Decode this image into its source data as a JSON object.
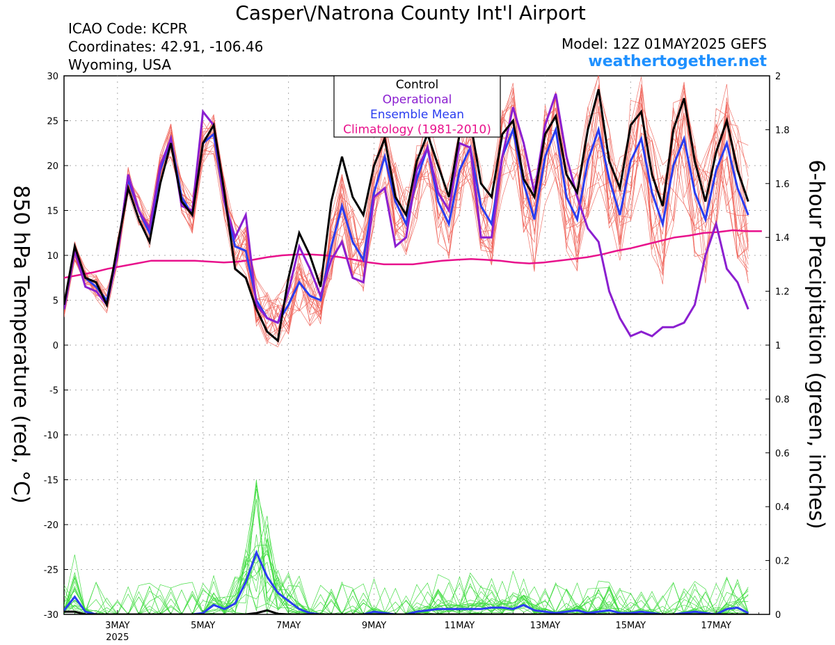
{
  "header": {
    "title": "Casper\\/Natrona County Int'l Airport",
    "icao": "ICAO Code: KCPR",
    "coords": "Coordinates: 42.91, -106.46",
    "region": "Wyoming, USA",
    "model": "Model: 12Z 01MAY2025 GEFS",
    "site": "weathertogether.net"
  },
  "chart_data": {
    "type": "line",
    "left_axis_label": "850 hPa Temperature (red, °C)",
    "right_axis_label": "6-hour Precipitation (green, inches)",
    "ylim": [
      -30,
      30
    ],
    "y2lim": [
      0,
      2
    ],
    "yticks": [
      30,
      25,
      20,
      15,
      10,
      5,
      0,
      -5,
      -10,
      -15,
      -20,
      -25,
      -30
    ],
    "y2ticks": [
      2,
      1.8,
      1.6,
      1.4,
      1.2,
      1,
      0.8,
      0.6,
      0.4,
      0.2,
      0
    ],
    "x_unit": "days since 01MAY2025 12Z (6-hour steps)",
    "xlim": [
      0.25,
      16.75
    ],
    "xticks": [
      {
        "x": 1.5,
        "label": "3MAY",
        "sub": "2025"
      },
      {
        "x": 3.5,
        "label": "5MAY"
      },
      {
        "x": 5.5,
        "label": "7MAY"
      },
      {
        "x": 7.5,
        "label": "9MAY"
      },
      {
        "x": 9.5,
        "label": "11MAY"
      },
      {
        "x": 11.5,
        "label": "13MAY"
      },
      {
        "x": 13.5,
        "label": "15MAY"
      },
      {
        "x": 15.5,
        "label": "17MAY"
      }
    ],
    "grid": true,
    "legend": {
      "position": "top-center",
      "entries": [
        {
          "label": "Control",
          "color": "#000000"
        },
        {
          "label": "Operational",
          "color": "#8b1fd0"
        },
        {
          "label": "Ensemble Mean",
          "color": "#2a3df0"
        },
        {
          "label": "Climatology (1981-2010)",
          "color": "#e8128c"
        }
      ]
    },
    "temp_control": [
      4.5,
      11,
      7.5,
      7,
      4.5,
      11,
      17.5,
      14,
      11.5,
      18,
      22.5,
      16,
      14.5,
      22.5,
      24.5,
      17,
      8.5,
      7.5,
      4,
      1.5,
      0.5,
      7.5,
      12.5,
      10,
      6.5,
      16,
      21,
      16.5,
      14.5,
      20,
      23,
      16.5,
      14.5,
      20.5,
      23.5,
      20,
      16.5,
      23.5,
      25,
      18,
      16.5,
      23.5,
      25,
      18.5,
      16.5,
      23.5,
      25.5,
      19,
      17,
      24,
      28.5,
      20.5,
      17.5,
      24.5,
      26,
      19,
      15.5,
      24,
      27.5,
      20.5,
      16,
      21.5,
      25,
      19.5,
      16
    ],
    "temp_operational": [
      4,
      10.5,
      6.5,
      6,
      4.5,
      10,
      19,
      15,
      13,
      20,
      23,
      15.5,
      15,
      26,
      24.5,
      16,
      12,
      14.5,
      4.5,
      3,
      2.5,
      6,
      11,
      8.5,
      5.5,
      9.5,
      11.5,
      7.5,
      7,
      16.5,
      17.5,
      11,
      12,
      19.5,
      22,
      17,
      15,
      22.5,
      22,
      12,
      12,
      21,
      26.5,
      22.5,
      17,
      24.5,
      28,
      21,
      16.5,
      13,
      11.5,
      6,
      3,
      1,
      1.5,
      1,
      2,
      2,
      2.5,
      4.5,
      10,
      13.5,
      8.5,
      7,
      4
    ],
    "temp_mean": [
      4,
      10.5,
      7.5,
      6.5,
      5,
      10.5,
      18.5,
      15,
      12.5,
      19.5,
      23,
      16.5,
      14.5,
      22.5,
      23.5,
      16,
      11,
      10.5,
      5,
      3,
      2.5,
      4.5,
      7,
      5.5,
      5,
      11,
      15.5,
      11.5,
      9.5,
      17,
      21,
      16,
      13.5,
      18.5,
      22,
      16,
      13.5,
      19.5,
      22,
      15.5,
      13.5,
      21,
      24,
      18,
      14,
      21,
      24,
      16.5,
      14,
      20.5,
      24,
      18.5,
      14.5,
      20.5,
      23,
      17,
      13.5,
      20,
      23,
      17,
      14,
      19.5,
      22.5,
      17.5,
      14.5
    ],
    "temp_climatology": [
      7.5,
      7.8,
      8.1,
      8.5,
      8.8,
      9.1,
      9.4,
      9.4,
      9.4,
      9.4,
      9.3,
      9.2,
      9.3,
      9.5,
      9.8,
      10,
      10.1,
      10.1,
      10,
      9.8,
      9.5,
      9.2,
      9,
      9,
      9,
      9.2,
      9.4,
      9.5,
      9.6,
      9.5,
      9.4,
      9.2,
      9.1,
      9.2,
      9.4,
      9.6,
      9.8,
      10.1,
      10.5,
      10.8,
      11.2,
      11.6,
      12,
      12.2,
      12.5,
      12.6,
      12.8,
      12.7,
      12.7
    ],
    "precip_control": [
      0.01,
      0.01,
      0,
      0,
      0,
      0,
      0,
      0,
      0,
      0,
      0,
      0,
      0,
      0,
      0,
      0,
      0,
      0,
      0.005,
      0.015,
      0.002,
      0,
      0,
      0,
      0,
      0,
      0,
      0,
      0,
      0,
      0,
      0,
      0,
      0,
      0,
      0,
      0,
      0,
      0,
      0,
      0,
      0,
      0,
      0,
      0,
      0,
      0,
      0,
      0,
      0,
      0,
      0,
      0,
      0,
      0,
      0,
      0,
      0,
      0,
      0,
      0,
      0,
      0,
      0,
      0
    ],
    "precip_mean": [
      0.015,
      0.065,
      0.01,
      0,
      0,
      0,
      0,
      0,
      0,
      0,
      0,
      0,
      0,
      0.005,
      0.035,
      0.02,
      0.04,
      0.12,
      0.23,
      0.14,
      0.08,
      0.05,
      0.02,
      0.005,
      0,
      0,
      0,
      0,
      0,
      0.01,
      0.005,
      0,
      0,
      0.01,
      0.015,
      0.02,
      0.02,
      0.02,
      0.02,
      0.02,
      0.025,
      0.025,
      0.02,
      0.035,
      0.015,
      0.01,
      0.005,
      0.01,
      0.015,
      0.005,
      0.01,
      0.015,
      0.005,
      0.005,
      0.01,
      0.005,
      0,
      0,
      0.005,
      0.01,
      0.005,
      0,
      0.02,
      0.025,
      0.005
    ]
  }
}
